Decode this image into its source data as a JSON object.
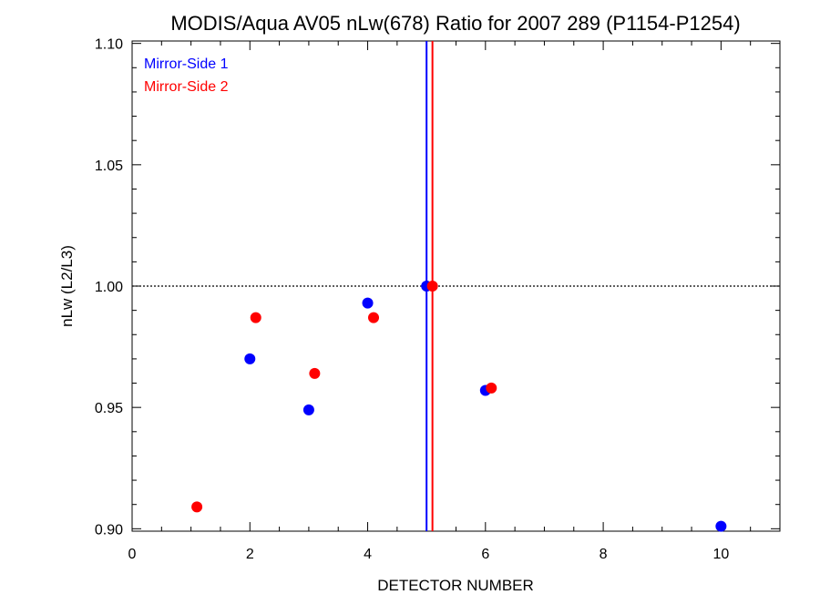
{
  "chart_data": {
    "type": "scatter",
    "title": "MODIS/Aqua AV05 nLw(678) Ratio for 2007 289 (P1154-P1254)",
    "xlabel": "DETECTOR NUMBER",
    "ylabel": "nLw (L2/L3)",
    "xlim": [
      0,
      11
    ],
    "ylim": [
      0.899,
      1.101
    ],
    "x_ticks": [
      0,
      2,
      4,
      6,
      8,
      10
    ],
    "x_tick_labels": [
      "0",
      "2",
      "4",
      "6",
      "8",
      "10"
    ],
    "y_ticks": [
      0.9,
      0.95,
      1.0,
      1.05,
      1.1
    ],
    "y_tick_labels": [
      "0.90",
      "0.95",
      "1.00",
      "1.05",
      "1.10"
    ],
    "reference_line_y": 1.0,
    "legend_position": "top-left",
    "series": [
      {
        "name": "Mirror-Side 1",
        "color": "#0000ff",
        "x": [
          2,
          3,
          4,
          5,
          6,
          10
        ],
        "y": [
          0.97,
          0.949,
          0.993,
          1.0,
          0.957,
          0.901
        ],
        "vline_x": 5.0
      },
      {
        "name": "Mirror-Side 2",
        "color": "#ff0000",
        "x": [
          1.1,
          2.1,
          3.1,
          4.1,
          5.1,
          6.1
        ],
        "y": [
          0.909,
          0.987,
          0.964,
          0.987,
          1.0,
          0.958
        ],
        "vline_x": 5.1
      }
    ]
  }
}
